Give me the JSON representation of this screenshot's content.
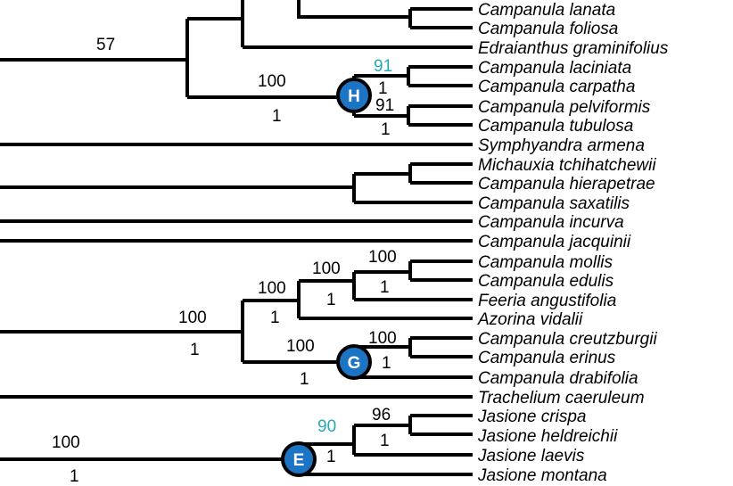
{
  "taxa": [
    "Campanula lanata",
    "Campanula foliosa",
    "Edraianthus graminifolius",
    "Campanula laciniata",
    "Campanula carpatha",
    "Campanula pelviformis",
    "Campanula tubulosa",
    "Symphyandra armena",
    "Michauxia tchihatchewii",
    "Campanula hierapetrae",
    "Campanula saxatilis",
    "Campanula incurva",
    "Campanula jacquinii",
    "Campanula mollis",
    "Campanula edulis",
    "Feeria angustifolia",
    "Azorina vidalii",
    "Campanula creutzburgii",
    "Campanula erinus",
    "Campanula drabifolia",
    "Trachelium caeruleum",
    "Jasione crispa",
    "Jasione heldreichii",
    "Jasione laevis",
    "Jasione montana"
  ],
  "support_values": [
    "57",
    "100",
    "1",
    "91",
    "1",
    "91",
    "1",
    "100",
    "100",
    "100",
    "1",
    "1",
    "1",
    "100",
    "1",
    "100",
    "100",
    "1",
    "1",
    "96",
    "90",
    "1",
    "1",
    "100",
    "1"
  ],
  "node_labels": [
    "H",
    "G",
    "E"
  ],
  "colors": {
    "branch": "#000000",
    "highlight_support": "#26a9b5",
    "node_marker_fill": "#1b74c4",
    "node_marker_ring": "#000000"
  }
}
